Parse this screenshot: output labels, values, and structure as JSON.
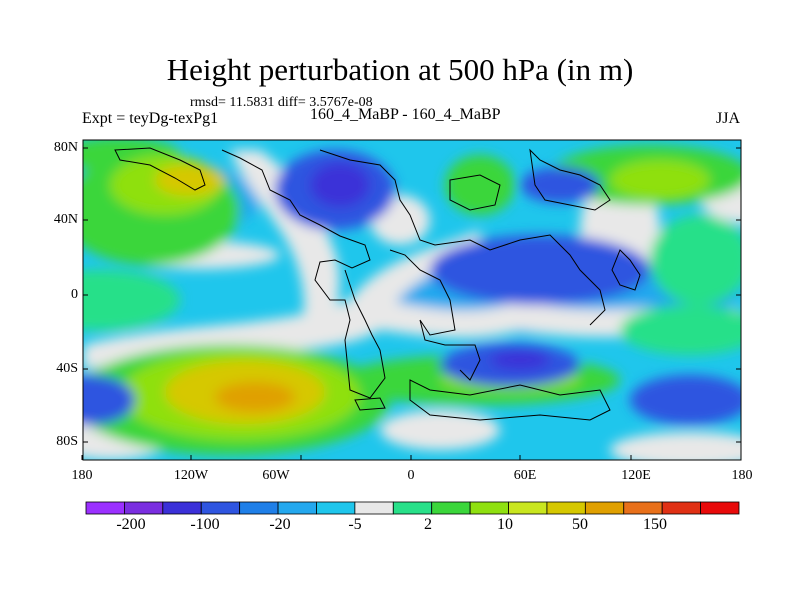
{
  "title": "Height perturbation at 500 hPa (in m)",
  "stats": "rmsd= 11.5831 diff= 3.5767e-08",
  "expt_label": "Expt = teyDg-texPg1",
  "subtitle": "160_4_MaBP - 160_4_MaBP",
  "season": "JJA",
  "lat_ticks": [
    "80N",
    "40N",
    "0",
    "40S",
    "80S"
  ],
  "lon_ticks": [
    "180",
    "120W",
    "60W",
    "0",
    "60E",
    "120E",
    "180"
  ],
  "colorbar": {
    "colors": [
      "#9b30ff",
      "#7a2ee0",
      "#3b30d8",
      "#2f55e0",
      "#1f7fe8",
      "#24a8ee",
      "#1fc6ec",
      "#e8e8e8",
      "#28e089",
      "#3bd63b",
      "#8fe010",
      "#c9e61f",
      "#d6c800",
      "#e0a000",
      "#e8701a",
      "#e03014",
      "#e80a0a"
    ],
    "labels": [
      "-200",
      "-100",
      "-20",
      "-5",
      "2",
      "10",
      "50",
      "150"
    ]
  }
}
